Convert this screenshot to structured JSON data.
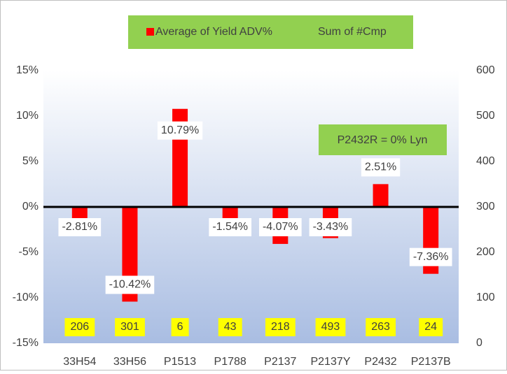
{
  "chart_data": {
    "type": "bar",
    "legend": [
      "Average of Yield ADV%",
      "Sum of #Cmp"
    ],
    "annotation": "P2432R = 0% Lyn",
    "categories": [
      "33H54",
      "33H56",
      "P1513",
      "P1788",
      "P2137",
      "P2137Y",
      "P2432",
      "P2137B"
    ],
    "series": [
      {
        "name": "Average of Yield ADV%",
        "color": "#ff0000",
        "values": [
          -2.81,
          -10.42,
          10.79,
          -1.54,
          -4.07,
          -3.43,
          2.51,
          -7.36
        ],
        "value_labels": [
          "-2.81%",
          "-10.42%",
          "10.79%",
          "-1.54%",
          "-4.07%",
          "-3.43%",
          "2.51%",
          "-7.36%"
        ]
      },
      {
        "name": "Sum of #Cmp",
        "color": "#ffff00",
        "axis": "y2",
        "values": [
          206,
          301,
          6,
          43,
          218,
          493,
          263,
          24
        ]
      }
    ],
    "ylim": [
      -15,
      15
    ],
    "yticks": [
      {
        "value": -15,
        "label": "-15%"
      },
      {
        "value": -10,
        "label": "-10%"
      },
      {
        "value": -5,
        "label": "-5%"
      },
      {
        "value": 0,
        "label": "0%"
      },
      {
        "value": 5,
        "label": "5%"
      },
      {
        "value": 10,
        "label": "10%"
      },
      {
        "value": 15,
        "label": "15%"
      }
    ],
    "y2lim": [
      0,
      600
    ],
    "y2ticks": [
      0,
      100,
      200,
      300,
      400,
      500,
      600
    ]
  }
}
